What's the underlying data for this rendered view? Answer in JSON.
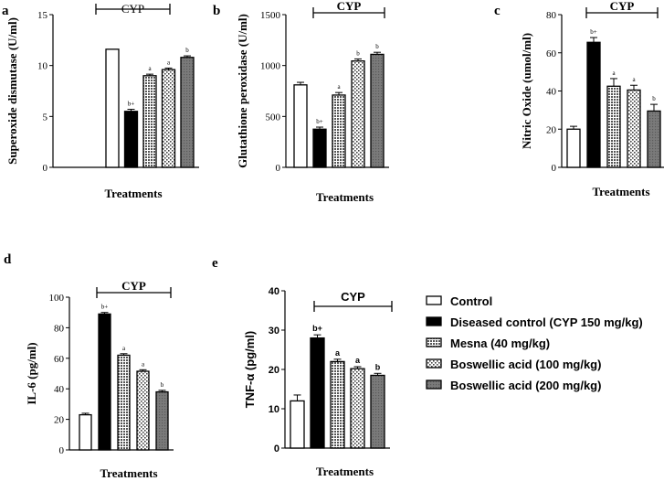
{
  "chart_data": [
    {
      "panel": "a",
      "type": "bar",
      "ylabel": "Superoxide dismutase (U/ml)",
      "xlabel": "Treatments",
      "bracket_label": "CYP",
      "ylim": [
        0,
        15
      ],
      "yticks": [
        "0",
        "5",
        "10",
        "15"
      ],
      "values": [
        11.6,
        5.5,
        9.0,
        9.6,
        10.8
      ],
      "errors": [
        0,
        0.2,
        0.15,
        0.15,
        0.15
      ],
      "sig": [
        "",
        "b+",
        "a",
        "a",
        "b"
      ]
    },
    {
      "panel": "b",
      "type": "bar",
      "ylabel": "Glutathione peroxidase (U/ml)",
      "xlabel": "Treatments",
      "bracket_label": "CYP",
      "ylim": [
        0,
        1500
      ],
      "yticks": [
        "0",
        "500",
        "1000",
        "1500"
      ],
      "values": [
        810,
        375,
        710,
        1045,
        1110
      ],
      "errors": [
        25,
        20,
        25,
        20,
        20
      ],
      "sig": [
        "",
        "b+",
        "a",
        "b",
        "b"
      ]
    },
    {
      "panel": "c",
      "type": "bar",
      "ylabel": "Nitric Oxide (umol/ml)",
      "xlabel": "Treatments",
      "bracket_label": "CYP",
      "ylim": [
        0,
        80
      ],
      "yticks": [
        "0",
        "20",
        "40",
        "60",
        "80"
      ],
      "values": [
        20,
        65.5,
        42.5,
        40.5,
        29.5
      ],
      "errors": [
        1.5,
        2.5,
        4,
        2.5,
        3.5
      ],
      "sig": [
        "",
        "b+",
        "a",
        "a",
        "b"
      ]
    },
    {
      "panel": "d",
      "type": "bar",
      "ylabel": "IL-6 (pg/ml)",
      "xlabel": "Treatments",
      "bracket_label": "CYP",
      "ylim": [
        0,
        100
      ],
      "yticks": [
        "0",
        "20",
        "40",
        "60",
        "80",
        "100"
      ],
      "values": [
        23,
        89,
        62,
        51.5,
        38
      ],
      "errors": [
        1,
        1,
        1,
        1,
        1
      ],
      "sig": [
        "",
        "b+",
        "a",
        "a",
        "b"
      ]
    },
    {
      "panel": "e",
      "type": "bar",
      "ylabel": "TNF-α (pg/ml)",
      "xlabel": "Treatments",
      "bracket_label": "CYP",
      "ylim": [
        0,
        40
      ],
      "yticks": [
        "0",
        "10",
        "20",
        "30",
        "40"
      ],
      "values": [
        12,
        28,
        22,
        20.2,
        18.5
      ],
      "errors": [
        1.5,
        0.8,
        0.6,
        0.5,
        0.5
      ],
      "sig": [
        "",
        "b+",
        "a",
        "a",
        "b"
      ]
    }
  ],
  "legend": [
    {
      "label": "Control",
      "pattern": "white"
    },
    {
      "label": "Diseased control (CYP 150 mg/kg)",
      "pattern": "black"
    },
    {
      "label": "Mesna (40 mg/kg)",
      "pattern": "grid"
    },
    {
      "label": "Boswellic acid (100 mg/kg)",
      "pattern": "dots"
    },
    {
      "label": "Boswellic acid (200 mg/kg)",
      "pattern": "gray"
    }
  ]
}
